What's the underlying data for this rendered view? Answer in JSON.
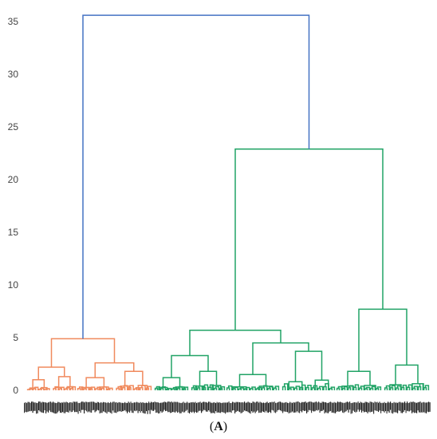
{
  "chart_data": {
    "type": "dendrogram",
    "title": "",
    "xlabel": "",
    "ylabel": "",
    "ylim": [
      0,
      36
    ],
    "yticks": [
      0,
      5,
      10,
      15,
      20,
      25,
      30,
      35
    ],
    "grid": false,
    "colors": {
      "link_above_threshold": "#4472c4",
      "cluster_1": "#f08a5d",
      "cluster_2": "#21a366"
    },
    "clusters": [
      {
        "id": 1,
        "color": "#f08a5d",
        "merge_height": 4.9,
        "subclusters": [
          {
            "merge_height": 2.2,
            "children_heights": [
              1.0,
              1.3
            ]
          },
          {
            "merge_height": 2.6,
            "children_heights": [
              1.2,
              1.8
            ]
          }
        ]
      },
      {
        "id": 2,
        "color": "#21a366",
        "merge_height": 22.9,
        "subclusters": [
          {
            "merge_height": 5.7,
            "children": [
              {
                "merge_height": 3.3,
                "children_heights": [
                  1.2,
                  1.8
                ]
              },
              {
                "merge_height": 4.5,
                "children_heights": [
                  1.5,
                  3.7
                ]
              }
            ]
          },
          {
            "merge_height": 7.7,
            "children_heights": [
              1.8,
              2.4
            ]
          }
        ]
      }
    ],
    "root_merge_height": 35.6,
    "leaf_axis": "dense overlapping leaf labels (unreadable)"
  },
  "panel_label": {
    "open": "(",
    "letter": "A",
    "close": ")"
  }
}
